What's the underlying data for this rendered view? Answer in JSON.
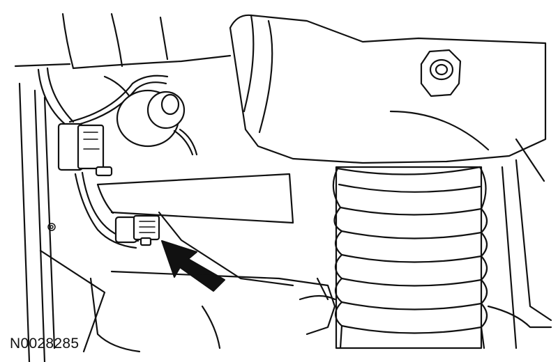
{
  "figure": {
    "id": "N0028285",
    "callout": "arrow-pointing-to-connector",
    "colors": {
      "line": "#111111",
      "background": "#ffffff"
    }
  }
}
